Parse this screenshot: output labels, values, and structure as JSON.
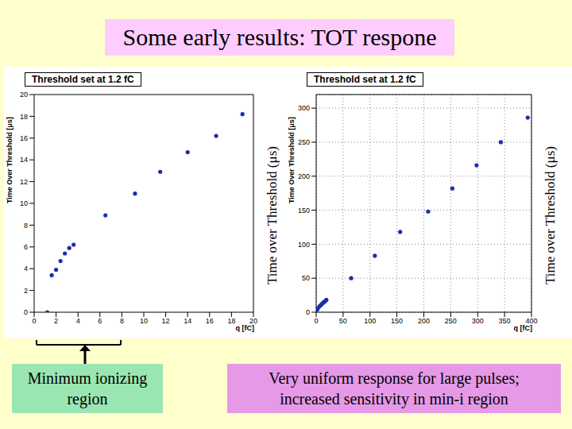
{
  "slide_title": "Some early results: TOT respone",
  "chart_data": [
    {
      "type": "scatter",
      "title": "Threshold set at 1.2 fC",
      "x_label": "q [fC]",
      "y_label": "Time Over Threshold [μs]",
      "side_label": "Time over Threshold (μs)",
      "xlim": [
        0,
        20
      ],
      "xticks": [
        0,
        2,
        4,
        6,
        8,
        10,
        12,
        14,
        16,
        18,
        20
      ],
      "ylim": [
        0,
        20
      ],
      "yticks": [
        0,
        2,
        4,
        6,
        8,
        10,
        12,
        14,
        16,
        18,
        20
      ],
      "x": [
        1.2,
        1.6,
        2.0,
        2.4,
        2.8,
        3.2,
        3.6,
        6.5,
        9.2,
        11.5,
        14,
        16.6,
        19
      ],
      "values": [
        0,
        3.4,
        3.9,
        4.7,
        5.4,
        5.9,
        6.2,
        8.9,
        10.9,
        12.9,
        14.7,
        16.2,
        18.2
      ],
      "color": "#1c2fa8",
      "marker": "circle",
      "grid": false
    },
    {
      "type": "scatter",
      "title": "Threshold set at 1.2 fC",
      "x_label": "q [fC]",
      "y_label": "Time Over Threshold [μs]",
      "side_label": "Time over Threshold (μs)",
      "xlim": [
        0,
        400
      ],
      "xticks": [
        0,
        50,
        100,
        150,
        200,
        250,
        300,
        350,
        400
      ],
      "ylim": [
        0,
        320
      ],
      "yticks": [
        0,
        50,
        100,
        150,
        200,
        250,
        300
      ],
      "x": [
        1.6,
        3.2,
        6.5,
        9.2,
        11.5,
        14,
        16.6,
        19,
        65,
        109,
        156,
        208,
        253,
        298,
        343,
        393
      ],
      "values": [
        3.4,
        5.9,
        8.9,
        10.9,
        12.9,
        14.7,
        16.2,
        18.2,
        50,
        83,
        118,
        148,
        182,
        216,
        250,
        286
      ],
      "color": "#1c2fa8",
      "marker": "circle",
      "grid": true
    }
  ],
  "annotations": {
    "left_box": [
      "Minimum ionizing",
      "region"
    ],
    "right_box": [
      "Very uniform response for large pulses;",
      "increased sensitivity in min-i region"
    ]
  }
}
